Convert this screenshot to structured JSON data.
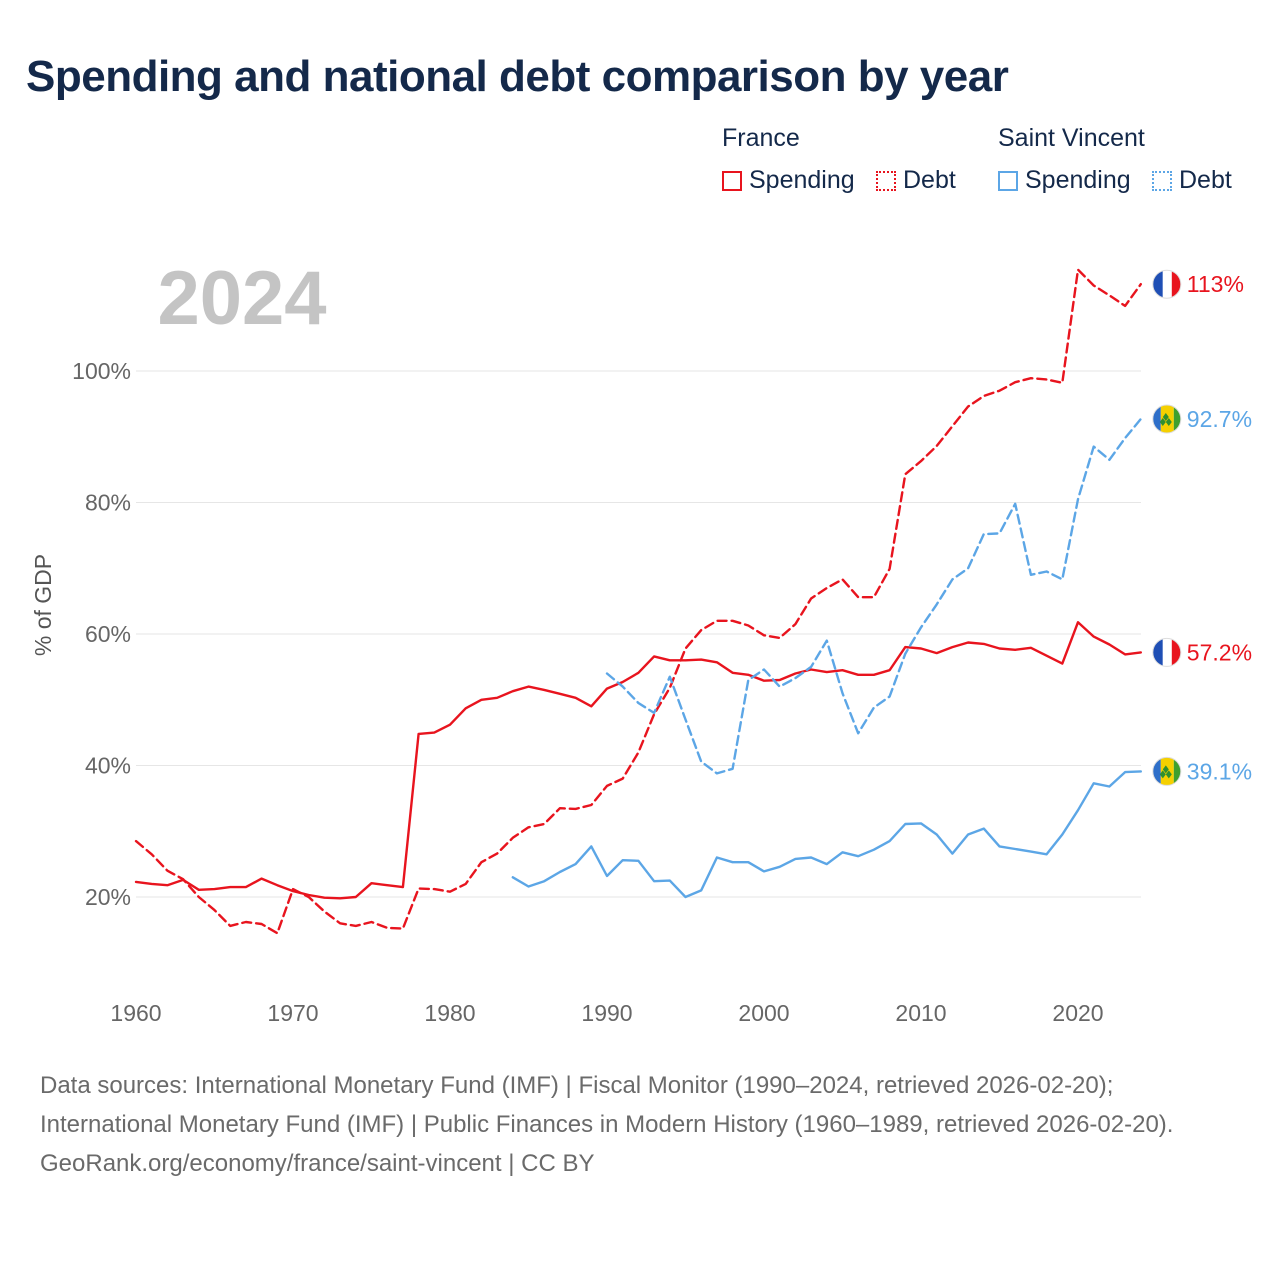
{
  "title": "Spending and national debt comparison by year",
  "year_label": "2024",
  "legend": {
    "groups": [
      {
        "name": "France",
        "color": "#e8141e",
        "items": [
          {
            "label": "Spending",
            "style": "solid"
          },
          {
            "label": "Debt",
            "style": "dotted"
          }
        ]
      },
      {
        "name": "Saint Vincent",
        "color": "#5ca6e6",
        "items": [
          {
            "label": "Spending",
            "style": "solid"
          },
          {
            "label": "Debt",
            "style": "dotted"
          }
        ]
      }
    ]
  },
  "end_labels": {
    "france_debt": "113%",
    "sv_debt": "92.7%",
    "france_spending": "57.2%",
    "sv_spending": "39.1%"
  },
  "chart_data": {
    "type": "line",
    "title": "Spending and national debt comparison by year",
    "ylabel": "% of GDP",
    "xlabel": "",
    "xlim": [
      1960,
      2024
    ],
    "ylim": [
      10,
      113
    ],
    "xticks": [
      1960,
      1970,
      1980,
      1990,
      2000,
      2010,
      2020
    ],
    "yticks": [
      20,
      40,
      60,
      80,
      100
    ],
    "ytick_labels": [
      "20%",
      "40%",
      "60%",
      "80%",
      "100%"
    ],
    "series": [
      {
        "name": "France Spending",
        "country": "France",
        "metric": "Spending",
        "color": "#e8141e",
        "dash": "solid",
        "x": [
          1960,
          1961,
          1962,
          1963,
          1964,
          1965,
          1966,
          1967,
          1968,
          1969,
          1970,
          1971,
          1972,
          1973,
          1974,
          1975,
          1976,
          1977,
          1978,
          1979,
          1980,
          1981,
          1982,
          1983,
          1984,
          1985,
          1986,
          1987,
          1988,
          1989,
          1990,
          1991,
          1992,
          1993,
          1994,
          1995,
          1996,
          1997,
          1998,
          1999,
          2000,
          2001,
          2002,
          2003,
          2004,
          2005,
          2006,
          2007,
          2008,
          2009,
          2010,
          2011,
          2012,
          2013,
          2014,
          2015,
          2016,
          2017,
          2018,
          2019,
          2020,
          2021,
          2022,
          2023,
          2024
        ],
        "y": [
          22.3,
          22.0,
          21.8,
          22.6,
          21.1,
          21.2,
          21.5,
          21.5,
          22.8,
          21.8,
          20.9,
          20.3,
          19.9,
          19.8,
          20.0,
          22.1,
          21.8,
          21.5,
          44.8,
          45.0,
          46.2,
          48.7,
          50.0,
          50.3,
          51.3,
          52.0,
          51.5,
          50.9,
          50.3,
          49.0,
          51.7,
          52.7,
          54.1,
          56.6,
          56.0,
          56.0,
          56.1,
          55.7,
          54.1,
          53.8,
          52.9,
          53.0,
          54.0,
          54.6,
          54.2,
          54.5,
          53.8,
          53.8,
          54.5,
          58.0,
          57.8,
          57.1,
          58.0,
          58.7,
          58.5,
          57.8,
          57.6,
          57.9,
          56.7,
          55.5,
          61.8,
          59.6,
          58.4,
          56.9,
          57.2
        ]
      },
      {
        "name": "France Debt",
        "country": "France",
        "metric": "Debt",
        "color": "#e8141e",
        "dash": "dashed",
        "x": [
          1960,
          1961,
          1962,
          1963,
          1964,
          1965,
          1966,
          1967,
          1968,
          1969,
          1970,
          1971,
          1972,
          1973,
          1974,
          1975,
          1976,
          1977,
          1978,
          1979,
          1980,
          1981,
          1982,
          1983,
          1984,
          1985,
          1986,
          1987,
          1988,
          1989,
          1990,
          1991,
          1992,
          1993,
          1994,
          1995,
          1996,
          1997,
          1998,
          1999,
          2000,
          2001,
          2002,
          2003,
          2004,
          2005,
          2006,
          2007,
          2008,
          2009,
          2010,
          2011,
          2012,
          2013,
          2014,
          2015,
          2016,
          2017,
          2018,
          2019,
          2020,
          2021,
          2022,
          2023,
          2024
        ],
        "y": [
          28.5,
          26.5,
          24.0,
          22.7,
          20.0,
          18.0,
          15.6,
          16.2,
          15.9,
          14.5,
          21.2,
          20.0,
          17.8,
          16.0,
          15.6,
          16.2,
          15.3,
          15.2,
          21.3,
          21.2,
          20.8,
          22.0,
          25.3,
          26.6,
          29.0,
          30.6,
          31.1,
          33.5,
          33.4,
          34.0,
          36.9,
          38.0,
          42.0,
          47.8,
          51.8,
          57.8,
          60.6,
          62.0,
          62.0,
          61.3,
          59.8,
          59.4,
          61.5,
          65.4,
          67.0,
          68.3,
          65.6,
          65.6,
          69.9,
          84.3,
          86.3,
          88.6,
          91.6,
          94.6,
          96.2,
          97.0,
          98.3,
          98.9,
          98.7,
          98.2,
          115.4,
          113.0,
          111.5,
          109.9,
          113.2
        ]
      },
      {
        "name": "Saint Vincent Spending",
        "country": "Saint Vincent",
        "metric": "Spending",
        "color": "#5ca6e6",
        "dash": "solid",
        "x": [
          1984,
          1985,
          1986,
          1987,
          1988,
          1989,
          1990,
          1991,
          1992,
          1993,
          1994,
          1995,
          1996,
          1997,
          1998,
          1999,
          2000,
          2001,
          2002,
          2003,
          2004,
          2005,
          2006,
          2007,
          2008,
          2009,
          2010,
          2011,
          2012,
          2013,
          2014,
          2015,
          2016,
          2017,
          2018,
          2019,
          2020,
          2021,
          2022,
          2023,
          2024
        ],
        "y": [
          23.0,
          21.6,
          22.4,
          23.8,
          25.0,
          27.7,
          23.2,
          25.6,
          25.5,
          22.4,
          22.5,
          20.0,
          21.0,
          26.0,
          25.3,
          25.3,
          23.9,
          24.6,
          25.8,
          26.0,
          25.0,
          26.8,
          26.2,
          27.2,
          28.5,
          31.1,
          31.2,
          29.5,
          26.6,
          29.5,
          30.4,
          27.7,
          27.3,
          26.9,
          26.5,
          29.5,
          33.2,
          37.3,
          36.8,
          39.0,
          39.1
        ]
      },
      {
        "name": "Saint Vincent Debt",
        "country": "Saint Vincent",
        "metric": "Debt",
        "color": "#5ca6e6",
        "dash": "dashed",
        "x": [
          1990,
          1991,
          1992,
          1993,
          1994,
          1995,
          1996,
          1997,
          1998,
          1999,
          2000,
          2001,
          2002,
          2003,
          2004,
          2005,
          2006,
          2007,
          2008,
          2009,
          2010,
          2011,
          2012,
          2013,
          2014,
          2015,
          2016,
          2017,
          2018,
          2019,
          2020,
          2021,
          2022,
          2023,
          2024
        ],
        "y": [
          54.0,
          52.0,
          49.5,
          48.0,
          53.5,
          47.0,
          40.6,
          38.8,
          39.5,
          53.0,
          54.6,
          52.0,
          53.3,
          55.0,
          59.0,
          51.0,
          44.9,
          48.8,
          50.5,
          57.0,
          61.0,
          64.5,
          68.3,
          70.0,
          75.2,
          75.3,
          79.8,
          69.0,
          69.5,
          68.3,
          80.5,
          88.5,
          86.5,
          89.8,
          92.7
        ]
      }
    ]
  },
  "footer": {
    "sources": "Data sources: International Monetary Fund (IMF) | Fiscal Monitor (1990–2024, retrieved 2026-02-20); International Monetary Fund (IMF) | Public Finances in Modern History (1960–1989, retrieved 2026-02-20).",
    "credit": "GeoRank.org/economy/france/saint-vincent | CC BY"
  }
}
